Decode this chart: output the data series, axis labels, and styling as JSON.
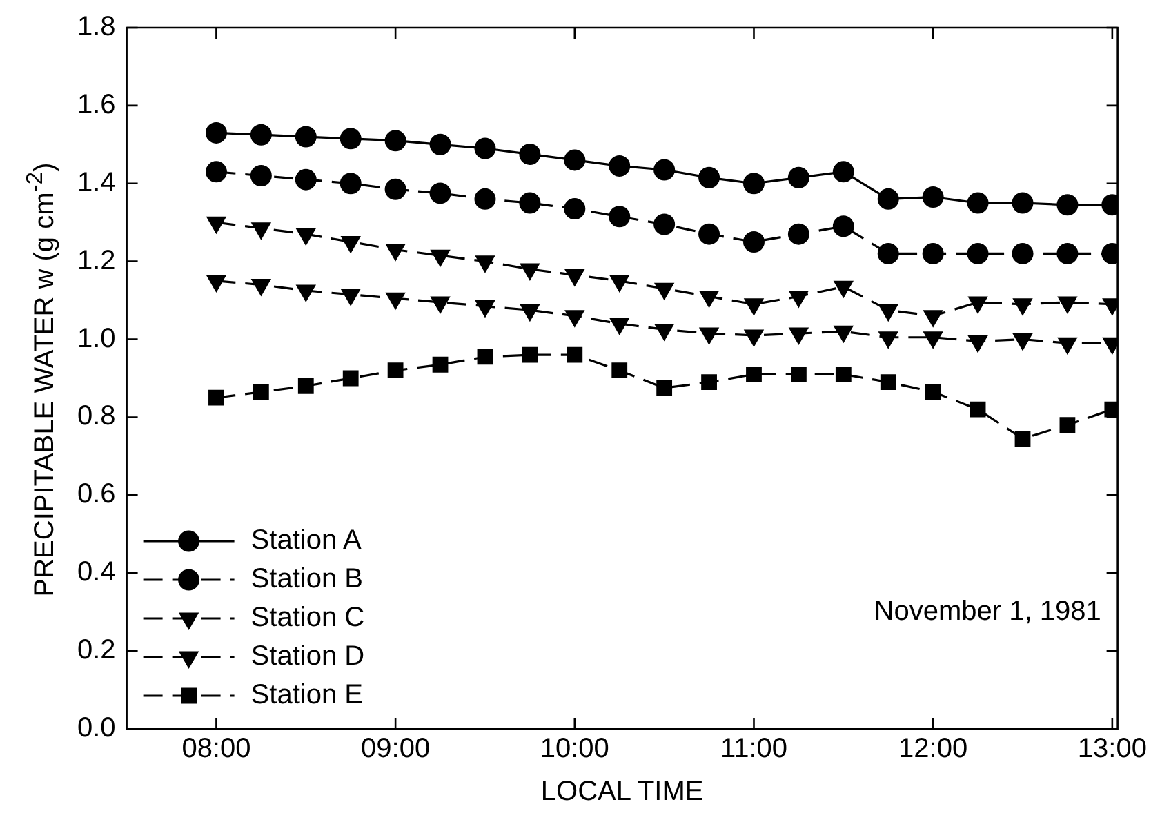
{
  "chart_data": {
    "type": "line",
    "xlabel": "LOCAL TIME",
    "ylabel": "PRECIPITABLE  WATER  w (g cm$^{-2}$)",
    "x": [
      8,
      8.25,
      8.5,
      8.75,
      9,
      9.25,
      9.5,
      9.75,
      10,
      10.25,
      10.5,
      10.75,
      11,
      11.25,
      11.5,
      11.75,
      12,
      12.25,
      12.5,
      12.75,
      13
    ],
    "xlim": [
      7.5,
      13.03
    ],
    "xticks": [
      {
        "value": 8,
        "label": "08:00"
      },
      {
        "value": 9,
        "label": "09:00"
      },
      {
        "value": 10,
        "label": "10:00"
      },
      {
        "value": 11,
        "label": "11:00"
      },
      {
        "value": 12,
        "label": "12:00"
      },
      {
        "value": 13,
        "label": "13:00"
      }
    ],
    "ylim": [
      0,
      1.8
    ],
    "yticks": [
      {
        "value": 0,
        "label": "0.0"
      },
      {
        "value": 0.2,
        "label": "0.2"
      },
      {
        "value": 0.4,
        "label": "0.4"
      },
      {
        "value": 0.6,
        "label": "0.6"
      },
      {
        "value": 0.8,
        "label": "0.8"
      },
      {
        "value": 1.0,
        "label": "1.0"
      },
      {
        "value": 1.2,
        "label": "1.2"
      },
      {
        "value": 1.4,
        "label": "1.4"
      },
      {
        "value": 1.6,
        "label": "1.6"
      },
      {
        "value": 1.8,
        "label": "1.8"
      }
    ],
    "grid": false,
    "legend": "bottom left",
    "annotations": [
      "November 1, 1981"
    ],
    "series": [
      {
        "name": "Station A",
        "color": "#000000",
        "marker": "circle",
        "line_style": "solid",
        "values": [
          1.53,
          1.525,
          1.52,
          1.515,
          1.51,
          1.5,
          1.49,
          1.475,
          1.46,
          1.445,
          1.435,
          1.415,
          1.4,
          1.415,
          1.43,
          1.36,
          1.365,
          1.35,
          1.35,
          1.345,
          1.345
        ]
      },
      {
        "name": "Station B",
        "color": "#000000",
        "marker": "circle",
        "line_style": "dashed",
        "values": [
          1.43,
          1.42,
          1.41,
          1.4,
          1.385,
          1.375,
          1.36,
          1.35,
          1.335,
          1.315,
          1.295,
          1.27,
          1.25,
          1.27,
          1.29,
          1.22,
          1.22,
          1.22,
          1.22,
          1.22,
          1.22
        ]
      },
      {
        "name": "Station C",
        "color": "#000000",
        "marker": "triangle",
        "line_style": "dashed",
        "values": [
          1.3,
          1.285,
          1.27,
          1.25,
          1.23,
          1.215,
          1.2,
          1.18,
          1.165,
          1.15,
          1.13,
          1.11,
          1.09,
          1.11,
          1.135,
          1.075,
          1.06,
          1.095,
          1.09,
          1.095,
          1.09
        ]
      },
      {
        "name": "Station D",
        "color": "#000000",
        "marker": "triangle",
        "line_style": "dashed",
        "values": [
          1.15,
          1.14,
          1.125,
          1.115,
          1.105,
          1.095,
          1.085,
          1.075,
          1.06,
          1.04,
          1.025,
          1.015,
          1.01,
          1.015,
          1.02,
          1.005,
          1.005,
          0.995,
          1.0,
          0.99,
          0.99
        ]
      },
      {
        "name": "Station E",
        "color": "#000000",
        "marker": "square",
        "line_style": "dashed",
        "values": [
          0.85,
          0.865,
          0.88,
          0.9,
          0.92,
          0.935,
          0.955,
          0.96,
          0.96,
          0.92,
          0.875,
          0.89,
          0.91,
          0.91,
          0.91,
          0.89,
          0.865,
          0.82,
          0.745,
          0.78,
          0.82
        ]
      }
    ]
  }
}
